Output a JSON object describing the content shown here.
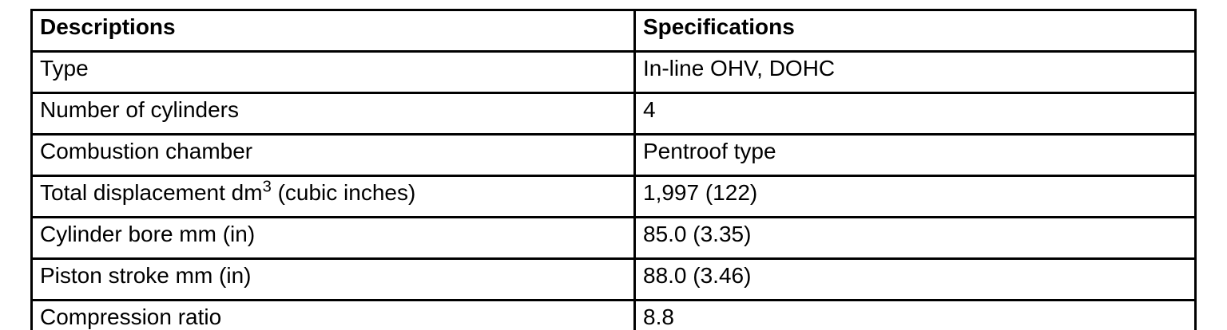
{
  "table": {
    "headers": [
      "Descriptions",
      "Specifications"
    ],
    "rows": [
      {
        "description": "Type",
        "specification": "In-line OHV, DOHC"
      },
      {
        "description": "Number of cylinders",
        "specification": "4"
      },
      {
        "description": "Combustion chamber",
        "specification": "Pentroof type"
      },
      {
        "description": "Total displacement dm",
        "description_sup": "3",
        "description_suffix": " (cubic inches)",
        "specification": "1,997 (122)"
      },
      {
        "description": "Cylinder bore mm (in)",
        "specification": "85.0 (3.35)"
      },
      {
        "description": "Piston stroke mm (in)",
        "specification": "88.0 (3.46)"
      },
      {
        "description": "Compression ratio",
        "specification": "8.8"
      }
    ],
    "colors": {
      "border": "#000000",
      "text": "#000000",
      "background": "#ffffff"
    }
  }
}
